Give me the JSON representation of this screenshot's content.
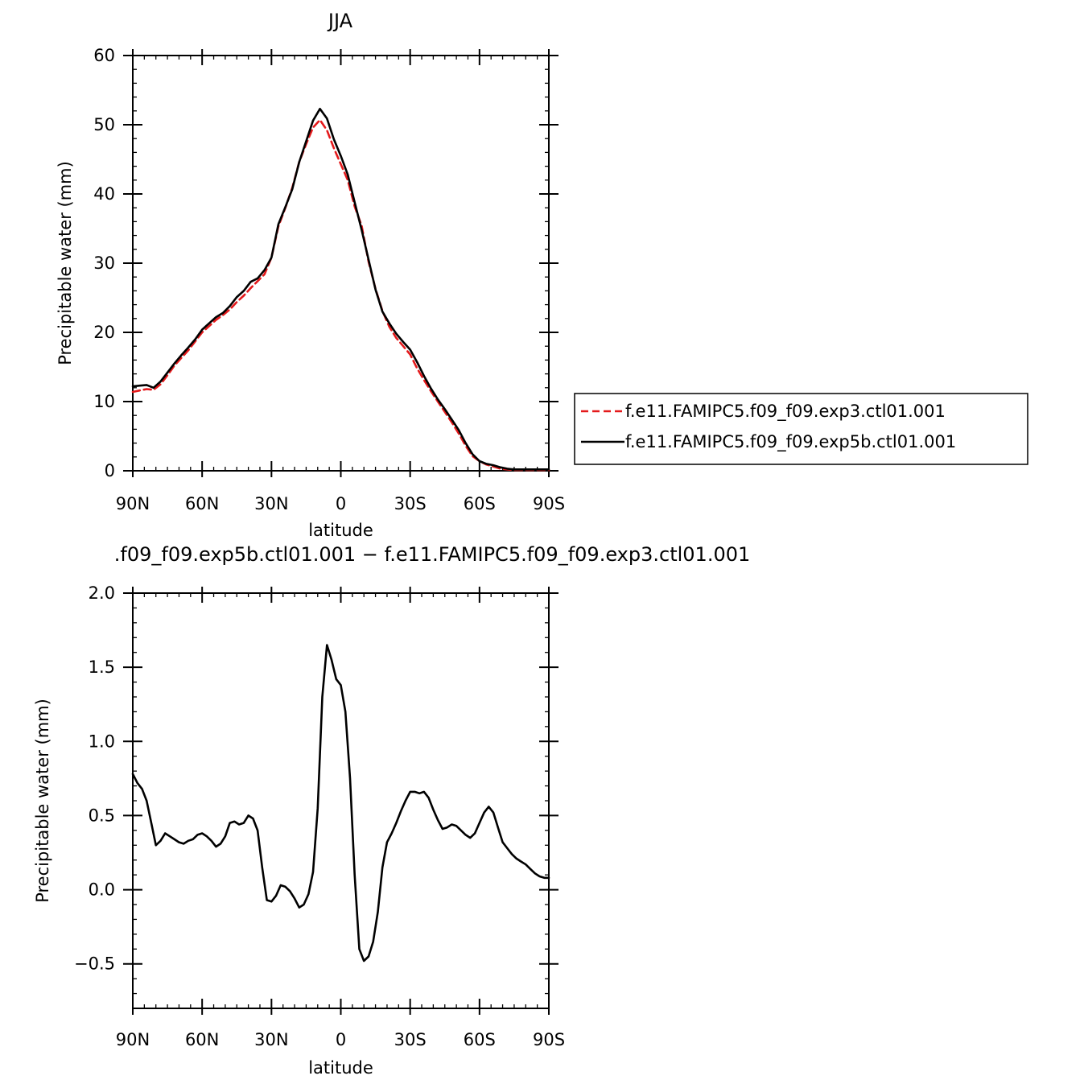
{
  "chart_data": [
    {
      "type": "line",
      "title": "JJA",
      "xlabel": "latitude",
      "ylabel": "Precipitable water (mm)",
      "xlim": [
        90,
        -90
      ],
      "ylim": [
        0,
        60
      ],
      "x_ticks": [
        90,
        60,
        30,
        0,
        -30,
        -60,
        -90
      ],
      "x_tick_labels": [
        "90N",
        "60N",
        "30N",
        "0",
        "30S",
        "60S",
        "90S"
      ],
      "y_ticks": [
        0,
        10,
        20,
        30,
        40,
        50,
        60
      ],
      "y_tick_labels": [
        "0",
        "10",
        "20",
        "30",
        "40",
        "50",
        "60"
      ],
      "grid": false,
      "legend_position": "right",
      "series": [
        {
          "name": "f.e11.FAMIPC5.f09_f09.exp3.ctl01.001",
          "color": "#e41a1c",
          "dash": "dashed",
          "x": [
            90,
            87,
            84,
            81,
            78,
            75,
            72,
            69,
            66,
            63,
            60,
            57,
            54,
            51,
            48,
            45,
            42,
            39,
            36,
            33,
            30,
            27,
            24,
            21,
            18,
            15,
            12,
            9,
            6,
            3,
            0,
            -3,
            -6,
            -9,
            -12,
            -15,
            -18,
            -21,
            -24,
            -27,
            -30,
            -33,
            -36,
            -39,
            -42,
            -45,
            -48,
            -51,
            -54,
            -57,
            -60,
            -63,
            -66,
            -69,
            -72,
            -75,
            -78,
            -81,
            -84,
            -87,
            -90
          ],
          "y": [
            11.4,
            11.6,
            11.8,
            11.7,
            12.5,
            13.8,
            15.2,
            16.3,
            17.4,
            18.7,
            20.0,
            20.9,
            21.8,
            22.5,
            23.3,
            24.4,
            25.3,
            26.4,
            27.4,
            28.4,
            30.8,
            35.3,
            38.0,
            40.9,
            44.6,
            47.2,
            49.6,
            50.7,
            49.2,
            46.6,
            44.3,
            42.0,
            38.2,
            35.4,
            30.2,
            26.3,
            23.1,
            20.8,
            19.2,
            18.0,
            16.8,
            14.8,
            13.1,
            11.5,
            10.0,
            8.5,
            7.0,
            5.4,
            3.6,
            2.1,
            1.4,
            0.9,
            0.6,
            0.3,
            0.2,
            0.1,
            0.1,
            0.1,
            0.1,
            0.1,
            0.1
          ]
        },
        {
          "name": "f.e11.FAMIPC5.f09_f09.exp5b.ctl01.001",
          "color": "#000000",
          "dash": "solid",
          "x": [
            90,
            87,
            84,
            81,
            78,
            75,
            72,
            69,
            66,
            63,
            60,
            57,
            54,
            51,
            48,
            45,
            42,
            39,
            36,
            33,
            30,
            27,
            24,
            21,
            18,
            15,
            12,
            9,
            6,
            3,
            0,
            -3,
            -6,
            -9,
            -12,
            -15,
            -18,
            -21,
            -24,
            -27,
            -30,
            -33,
            -36,
            -39,
            -42,
            -45,
            -48,
            -51,
            -54,
            -57,
            -60,
            -63,
            -66,
            -69,
            -72,
            -75,
            -78,
            -81,
            -84,
            -87,
            -90
          ],
          "y": [
            12.2,
            12.3,
            12.4,
            12.0,
            12.9,
            14.2,
            15.5,
            16.7,
            17.8,
            19.0,
            20.4,
            21.3,
            22.2,
            22.8,
            23.8,
            25.1,
            26.0,
            27.3,
            27.8,
            29.0,
            30.8,
            35.6,
            38.1,
            40.7,
            44.6,
            47.6,
            50.6,
            52.3,
            50.9,
            47.9,
            45.5,
            42.8,
            38.8,
            34.8,
            30.5,
            26.2,
            23.0,
            21.3,
            19.8,
            18.6,
            17.5,
            15.7,
            13.7,
            11.9,
            10.3,
            8.9,
            7.4,
            5.9,
            4.0,
            2.4,
            1.4,
            1.0,
            0.8,
            0.5,
            0.3,
            0.2,
            0.2,
            0.2,
            0.2,
            0.2,
            0.2
          ]
        }
      ]
    },
    {
      "type": "line",
      "title": ".f09_f09.exp5b.ctl01.001 − f.e11.FAMIPC5.f09_f09.exp3.ctl01.001",
      "xlabel": "latitude",
      "ylabel": "Precipitable water (mm)",
      "xlim": [
        90,
        -90
      ],
      "ylim": [
        -0.8,
        2.0
      ],
      "x_ticks": [
        90,
        60,
        30,
        0,
        -30,
        -60,
        -90
      ],
      "x_tick_labels": [
        "90N",
        "60N",
        "30N",
        "0",
        "30S",
        "60S",
        "90S"
      ],
      "y_ticks": [
        -0.5,
        0.0,
        0.5,
        1.0,
        1.5,
        2.0
      ],
      "y_tick_labels": [
        "−0.5",
        "0.0",
        "0.5",
        "1.0",
        "1.5",
        "2.0"
      ],
      "grid": false,
      "series": [
        {
          "color": "#000000",
          "dash": "solid",
          "x": [
            90,
            88,
            86,
            84,
            82,
            80,
            78,
            76,
            74,
            72,
            70,
            68,
            66,
            64,
            62,
            60,
            58,
            56,
            54,
            52,
            50,
            48,
            46,
            44,
            42,
            40,
            38,
            36,
            34,
            32,
            30,
            28,
            26,
            24,
            22,
            20,
            18,
            16,
            14,
            12,
            10,
            8,
            6,
            4,
            2,
            0,
            -2,
            -4,
            -6,
            -8,
            -10,
            -12,
            -14,
            -16,
            -18,
            -20,
            -22,
            -24,
            -26,
            -28,
            -30,
            -32,
            -34,
            -36,
            -38,
            -40,
            -42,
            -44,
            -46,
            -48,
            -50,
            -52,
            -54,
            -56,
            -58,
            -60,
            -62,
            -64,
            -66,
            -68,
            -70,
            -72,
            -74,
            -76,
            -78,
            -80,
            -82,
            -84,
            -86,
            -88,
            -90
          ],
          "y": [
            0.78,
            0.72,
            0.68,
            0.6,
            0.45,
            0.3,
            0.33,
            0.38,
            0.36,
            0.34,
            0.32,
            0.31,
            0.33,
            0.34,
            0.37,
            0.38,
            0.36,
            0.33,
            0.29,
            0.31,
            0.36,
            0.45,
            0.46,
            0.44,
            0.45,
            0.5,
            0.48,
            0.4,
            0.15,
            -0.07,
            -0.08,
            -0.04,
            0.03,
            0.02,
            -0.01,
            -0.06,
            -0.12,
            -0.1,
            -0.03,
            0.12,
            0.55,
            1.3,
            1.65,
            1.55,
            1.42,
            1.38,
            1.2,
            0.75,
            0.1,
            -0.4,
            -0.48,
            -0.45,
            -0.35,
            -0.15,
            0.15,
            0.32,
            0.38,
            0.45,
            0.53,
            0.6,
            0.66,
            0.66,
            0.65,
            0.66,
            0.62,
            0.54,
            0.47,
            0.41,
            0.42,
            0.44,
            0.43,
            0.4,
            0.37,
            0.35,
            0.38,
            0.45,
            0.52,
            0.56,
            0.52,
            0.42,
            0.32,
            0.28,
            0.24,
            0.21,
            0.19,
            0.17,
            0.14,
            0.11,
            0.09,
            0.08,
            0.08
          ]
        }
      ]
    }
  ]
}
